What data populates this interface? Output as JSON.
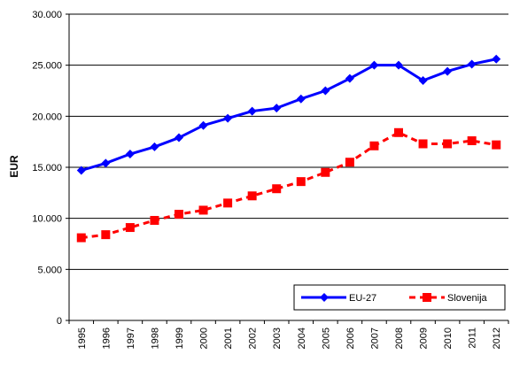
{
  "chart_data": {
    "type": "line",
    "title": "",
    "xlabel": "",
    "ylabel": "EUR",
    "ylim": [
      0,
      30000
    ],
    "y_ticks": [
      0,
      5000,
      10000,
      15000,
      20000,
      25000,
      30000
    ],
    "y_tick_labels": [
      "0",
      "5.000",
      "10.000",
      "15.000",
      "20.000",
      "25.000",
      "30.000"
    ],
    "grid": "horizontal",
    "legend_placement": "bottom-right",
    "categories": [
      "1995",
      "1996",
      "1997",
      "1998",
      "1999",
      "2000",
      "2001",
      "2002",
      "2003",
      "2004",
      "2005",
      "2006",
      "2007",
      "2008",
      "2009",
      "2010",
      "2011",
      "2012"
    ],
    "series": [
      {
        "name": "EU-27",
        "color": "#0000ff",
        "line_style": "solid",
        "marker": "diamond",
        "values": [
          14700,
          15400,
          16300,
          17000,
          17900,
          19100,
          19800,
          20500,
          20800,
          21700,
          22500,
          23700,
          25000,
          25000,
          23500,
          24400,
          25100,
          25600
        ]
      },
      {
        "name": "Slovenija",
        "color": "#ff0000",
        "line_style": "dashed",
        "marker": "square",
        "values": [
          8100,
          8400,
          9100,
          9800,
          10400,
          10800,
          11500,
          12200,
          12900,
          13600,
          14500,
          15500,
          17100,
          18400,
          17300,
          17300,
          17600,
          17200
        ]
      }
    ]
  }
}
